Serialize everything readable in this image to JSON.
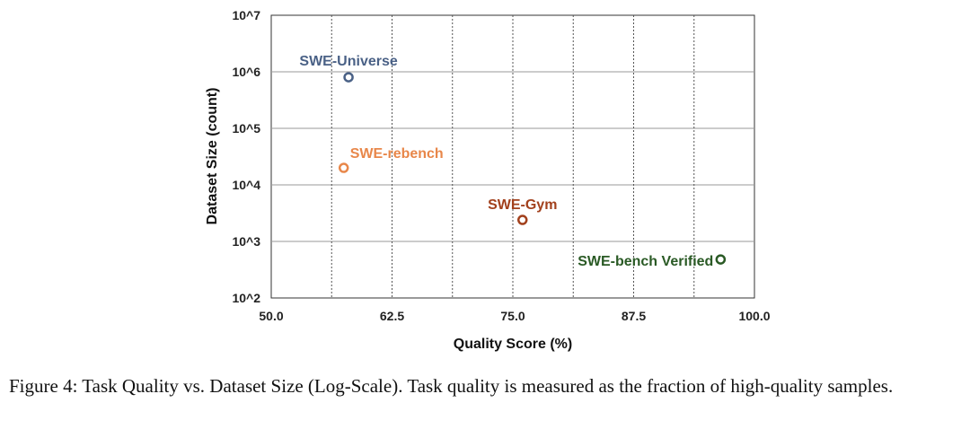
{
  "chart_data": {
    "type": "scatter",
    "xlabel": "Quality Score (%)",
    "ylabel": "Dataset Size (count)",
    "xlim": [
      50,
      100
    ],
    "ylim": [
      100,
      10000000
    ],
    "yscale": "log",
    "x_ticks": [
      "50.0",
      "62.5",
      "75.0",
      "87.5",
      "100.0"
    ],
    "y_ticks": [
      "10^2",
      "10^3",
      "10^4",
      "10^5",
      "10^6",
      "10^7"
    ],
    "grid": true,
    "points": [
      {
        "label": "SWE-Universe",
        "x": 58.0,
        "y": 800000,
        "color": "#4a6186"
      },
      {
        "label": "SWE-rebench",
        "x": 57.5,
        "y": 20000,
        "color": "#e8874a"
      },
      {
        "label": "SWE-Gym",
        "x": 76.0,
        "y": 2400,
        "color": "#a2401c"
      },
      {
        "label": "SWE-bench Verified",
        "x": 96.5,
        "y": 480,
        "color": "#2a5a25"
      }
    ]
  },
  "caption": "Figure 4: Task Quality vs. Dataset Size (Log-Scale). Task quality is measured as the fraction of high-quality samples."
}
